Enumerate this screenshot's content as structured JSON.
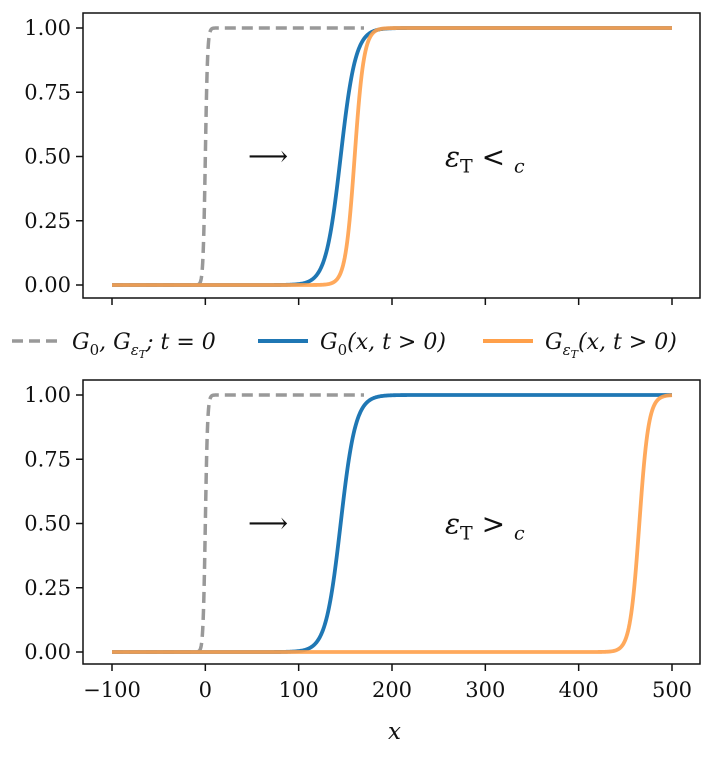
{
  "legend": {
    "entries": [
      {
        "label": "G₀, G_εT; t = 0",
        "color": "#999999",
        "style": "dashed"
      },
      {
        "label": "G₀(x, t > 0)",
        "color": "#1f77b4",
        "style": "solid"
      },
      {
        "label": "G_εT(x, t > 0)",
        "color": "#ffa04a",
        "style": "solid"
      }
    ]
  },
  "chart_data": [
    {
      "type": "line",
      "title": "",
      "xlabel": "",
      "ylabel": "",
      "xlim": [
        -100,
        500
      ],
      "ylim": [
        0,
        1
      ],
      "yticks": [
        "0.00",
        "0.25",
        "0.50",
        "0.75",
        "1.00"
      ],
      "xticks": [
        -100,
        0,
        100,
        200,
        300,
        400,
        500
      ],
      "annotation": "εT < cβ",
      "arrow": "⟶",
      "series": [
        {
          "name": "G₀, G_εT; t = 0",
          "color": "#999999",
          "dashed": true,
          "center": 0,
          "width": 1.2,
          "x_start": -100,
          "x_end": 170
        },
        {
          "name": "G₀(x, t > 0)",
          "color": "#1f77b4",
          "dashed": false,
          "center": 145,
          "width": 8,
          "x_start": -100,
          "x_end": 500
        },
        {
          "name": "G_εT(x, t > 0)",
          "color": "#ffa04a",
          "dashed": false,
          "center": 160,
          "width": 5,
          "x_start": -100,
          "x_end": 500
        }
      ]
    },
    {
      "type": "line",
      "title": "",
      "xlabel": "x",
      "ylabel": "",
      "xlim": [
        -100,
        500
      ],
      "ylim": [
        0,
        1
      ],
      "yticks": [
        "0.00",
        "0.25",
        "0.50",
        "0.75",
        "1.00"
      ],
      "xticks": [
        -100,
        0,
        100,
        200,
        300,
        400,
        500
      ],
      "xticklabels": [
        "−100",
        "0",
        "100",
        "200",
        "300",
        "400",
        "500"
      ],
      "annotation": "εT > cβ",
      "arrow": "⟶",
      "series": [
        {
          "name": "G₀, G_εT; t = 0",
          "color": "#999999",
          "dashed": true,
          "center": 0,
          "width": 1.2,
          "x_start": -100,
          "x_end": 170
        },
        {
          "name": "G₀(x, t > 0)",
          "color": "#1f77b4",
          "dashed": false,
          "center": 145,
          "width": 8,
          "x_start": -100,
          "x_end": 500
        },
        {
          "name": "G_εT(x, t > 0)",
          "color": "#ffa04a",
          "dashed": false,
          "center": 465,
          "width": 5,
          "x_start": -100,
          "x_end": 500
        }
      ]
    }
  ]
}
